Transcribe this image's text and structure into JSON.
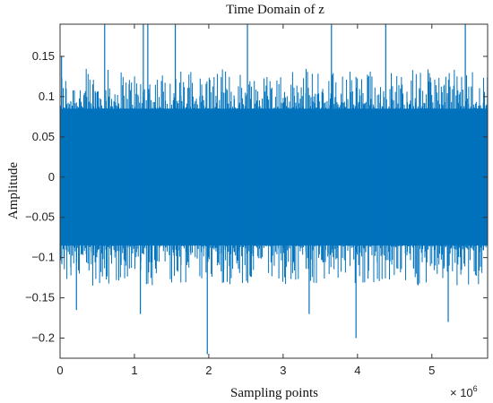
{
  "chart_data": {
    "type": "line",
    "title": "Time Domain of z",
    "xlabel": "Sampling  points",
    "ylabel": "Amplitude",
    "x_multiplier_label": "× 10",
    "x_multiplier_exponent": "6",
    "xlim": [
      0,
      5.75
    ],
    "ylim": [
      -0.225,
      0.19
    ],
    "x_ticks": [
      0,
      1,
      2,
      3,
      4,
      5
    ],
    "x_tick_labels": [
      "0",
      "1",
      "2",
      "3",
      "4",
      "5"
    ],
    "y_ticks": [
      0.15,
      0.1,
      0.05,
      0,
      -0.05,
      -0.1,
      -0.15,
      -0.2
    ],
    "y_tick_labels": [
      "0.15",
      "0.1",
      "0.05",
      "0",
      "-0.05",
      "-0.1",
      "-0.15",
      "-0.2"
    ],
    "grid": false,
    "series": [
      {
        "color": "#0072BD",
        "dense_band": [
          -0.085,
          0.085
        ],
        "peak_positive": [
          {
            "x": 0.02,
            "y": 0.15
          },
          {
            "x": 0.6,
            "y": 0.19
          },
          {
            "x": 1.12,
            "y": 0.19
          },
          {
            "x": 1.18,
            "y": 0.19
          },
          {
            "x": 1.55,
            "y": 0.19
          },
          {
            "x": 2.52,
            "y": 0.19
          },
          {
            "x": 3.65,
            "y": 0.19
          },
          {
            "x": 4.38,
            "y": 0.19
          },
          {
            "x": 5.45,
            "y": 0.19
          }
        ],
        "peak_negative": [
          {
            "x": 0.22,
            "y": -0.165
          },
          {
            "x": 1.08,
            "y": -0.17
          },
          {
            "x": 1.98,
            "y": -0.22
          },
          {
            "x": 3.35,
            "y": -0.17
          },
          {
            "x": 3.98,
            "y": -0.2
          },
          {
            "x": 5.22,
            "y": -0.18
          }
        ]
      }
    ]
  }
}
